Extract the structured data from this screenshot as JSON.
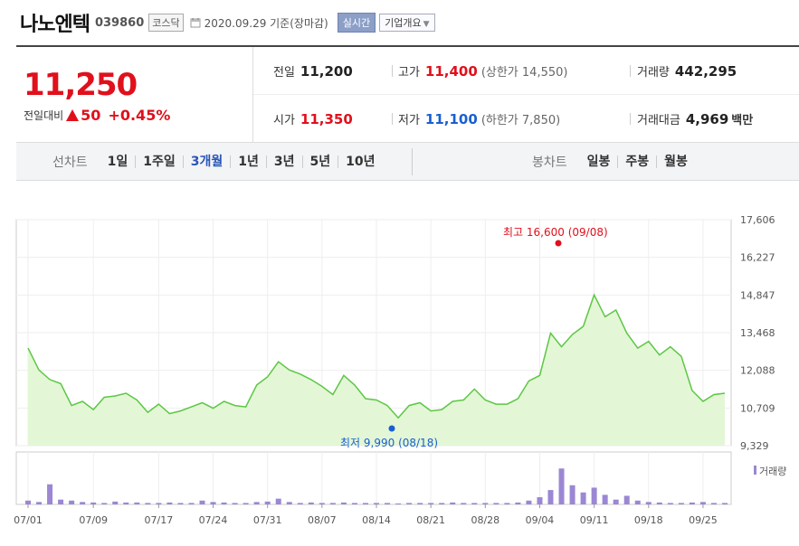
{
  "header": {
    "company": "나노엔텍",
    "code": "039860",
    "market": "코스닥",
    "date": "2020.09.29 기준(장마감)",
    "realtime": "실시간",
    "company_info": "기업개요"
  },
  "price": {
    "current": "11,250",
    "change_label": "전일대비",
    "change_value": "50",
    "change_pct": "+0.45%"
  },
  "stats": {
    "prev_label": "전일",
    "prev": "11,200",
    "high_label": "고가",
    "high": "11,400",
    "upper_limit": "(상한가 14,550)",
    "volume_label": "거래량",
    "volume": "442,295",
    "open_label": "시가",
    "open": "11,350",
    "low_label": "저가",
    "low": "11,100",
    "lower_limit": "(하한가 7,850)",
    "amount_label": "거래대금",
    "amount": "4,969",
    "amount_unit": "백만"
  },
  "periods": {
    "label": "선차트",
    "items": [
      "1일",
      "1주일",
      "3개월",
      "1년",
      "3년",
      "5년",
      "10년"
    ],
    "active": "3개월"
  },
  "candles": {
    "label": "봉차트",
    "items": [
      "일봉",
      "주봉",
      "월봉"
    ]
  },
  "colors": {
    "up": "#e0101c",
    "down": "#1a5fd1",
    "line": "#5cc744",
    "fill": "#e3f7d6",
    "volume": "#9b87d4"
  },
  "chart_data": {
    "type": "area",
    "y_ticks": [
      "17,606",
      "16,227",
      "14,847",
      "13,468",
      "12,088",
      "10,709",
      "9,329"
    ],
    "ylim": [
      9329,
      17606
    ],
    "x_ticks": [
      "07/01",
      "07/09",
      "07/17",
      "07/24",
      "07/31",
      "08/07",
      "08/14",
      "08/21",
      "08/28",
      "09/04",
      "09/11",
      "09/18",
      "09/25"
    ],
    "x_tick_index": [
      0,
      6,
      12,
      17,
      22,
      27,
      32,
      37,
      42,
      47,
      52,
      57,
      62
    ],
    "high_annotation": "최고 16,600 (09/08)",
    "low_annotation": "최저 9,990 (08/18)",
    "volume_legend": "거래량",
    "series": [
      {
        "values": [
          12900,
          12100,
          11750,
          11600,
          10800,
          10950,
          10650,
          11100,
          11150,
          11250,
          11000,
          10550,
          10850,
          10500,
          10600,
          10750,
          10900,
          10700,
          10950,
          10800,
          10750,
          11550,
          11850,
          12400,
          12100,
          11950,
          11750,
          11500,
          11200,
          11900,
          11550,
          11050,
          11000,
          10800,
          10350,
          10800,
          10900,
          10600,
          10650,
          10950,
          11000,
          11400,
          11000,
          10850,
          10850,
          11050,
          11700,
          11900,
          13450,
          12950,
          13400,
          13700,
          14850,
          14050,
          14300,
          13450,
          12900,
          13150,
          12650,
          12950,
          12600,
          11350,
          10950,
          11200,
          11250
        ]
      }
    ],
    "volume": [
      8,
      5,
      42,
      10,
      8,
      5,
      4,
      3,
      6,
      4,
      4,
      3,
      3,
      4,
      3,
      3,
      8,
      5,
      4,
      3,
      3,
      5,
      6,
      12,
      5,
      3,
      4,
      3,
      3,
      4,
      3,
      3,
      3,
      3,
      2,
      3,
      3,
      3,
      3,
      4,
      3,
      3,
      3,
      3,
      3,
      4,
      8,
      15,
      30,
      75,
      40,
      25,
      35,
      20,
      10,
      18,
      8,
      5,
      4,
      3,
      3,
      4,
      5,
      3,
      3
    ]
  }
}
